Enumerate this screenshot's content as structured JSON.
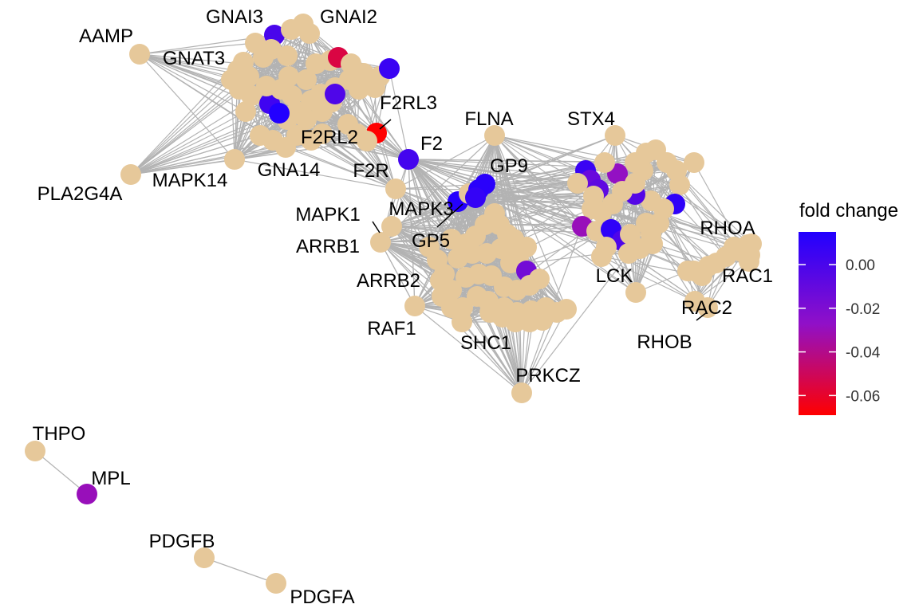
{
  "chart_data": {
    "type": "network",
    "legend": {
      "title": "fold change",
      "position": "right",
      "ticks": [
        "0.00",
        "-0.02",
        "-0.04",
        "-0.06"
      ],
      "tick_values": [
        0.0,
        -0.02,
        -0.04,
        -0.06
      ],
      "range": [
        -0.069,
        0.015
      ],
      "colors": {
        "high": "#2200ff",
        "mid": "#9010c8",
        "low": "#ff0000"
      }
    },
    "labeled_nodes": [
      {
        "name": "GNAI3",
        "fold_change": 0.0
      },
      {
        "name": "GNAI2"
      },
      {
        "name": "AAMP"
      },
      {
        "name": "GNAT3"
      },
      {
        "name": "F2RL3",
        "fold_change": -0.069
      },
      {
        "name": "F2RL2"
      },
      {
        "name": "FLNA"
      },
      {
        "name": "STX4"
      },
      {
        "name": "F2",
        "fold_change": 0.002
      },
      {
        "name": "GNA14"
      },
      {
        "name": "MAPK14"
      },
      {
        "name": "PLA2G4A"
      },
      {
        "name": "F2R"
      },
      {
        "name": "GP9",
        "fold_change": 0.012
      },
      {
        "name": "MAPK3",
        "fold_change": 0.014
      },
      {
        "name": "MAPK1"
      },
      {
        "name": "GP5"
      },
      {
        "name": "ARRB1"
      },
      {
        "name": "ARRB2"
      },
      {
        "name": "RAF1"
      },
      {
        "name": "SHC1"
      },
      {
        "name": "PRKCZ"
      },
      {
        "name": "LCK"
      },
      {
        "name": "RHOA"
      },
      {
        "name": "RAC1"
      },
      {
        "name": "RAC2"
      },
      {
        "name": "RHOB"
      },
      {
        "name": "THPO"
      },
      {
        "name": "MPL",
        "fold_change": -0.03
      },
      {
        "name": "PDGFB"
      },
      {
        "name": "PDGFA"
      }
    ],
    "colors": {
      "no_change_node": "#e6c89a",
      "edge": "#b3b3b3"
    }
  }
}
